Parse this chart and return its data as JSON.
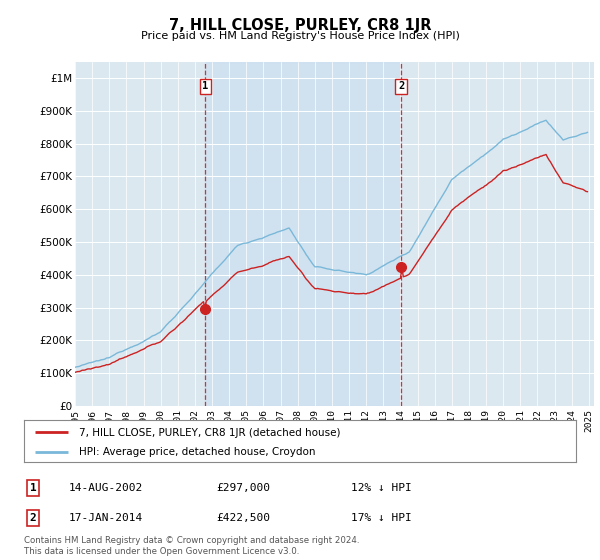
{
  "title": "7, HILL CLOSE, PURLEY, CR8 1JR",
  "subtitle": "Price paid vs. HM Land Registry's House Price Index (HPI)",
  "ylim": [
    0,
    1050000
  ],
  "yticks": [
    0,
    100000,
    200000,
    300000,
    400000,
    500000,
    600000,
    700000,
    800000,
    900000,
    1000000
  ],
  "ytick_labels": [
    "£0",
    "£100K",
    "£200K",
    "£300K",
    "£400K",
    "£500K",
    "£600K",
    "£700K",
    "£800K",
    "£900K",
    "£1M"
  ],
  "hpi_color": "#7ab8d9",
  "price_color": "#cc2222",
  "vline_color": "#cc2222",
  "sale1_year": 2002.617,
  "sale1_price": 297000,
  "sale1_label": "1",
  "sale2_year": 2014.042,
  "sale2_price": 422500,
  "sale2_label": "2",
  "legend_label_price": "7, HILL CLOSE, PURLEY, CR8 1JR (detached house)",
  "legend_label_hpi": "HPI: Average price, detached house, Croydon",
  "table_row1": [
    "1",
    "14-AUG-2002",
    "£297,000",
    "12% ↓ HPI"
  ],
  "table_row2": [
    "2",
    "17-JAN-2014",
    "£422,500",
    "17% ↓ HPI"
  ],
  "footnote": "Contains HM Land Registry data © Crown copyright and database right 2024.\nThis data is licensed under the Open Government Licence v3.0.",
  "background_color": "#ffffff",
  "plot_bg_color": "#dce8f0",
  "shade_color": "#cce0f0",
  "grid_color": "#ffffff"
}
